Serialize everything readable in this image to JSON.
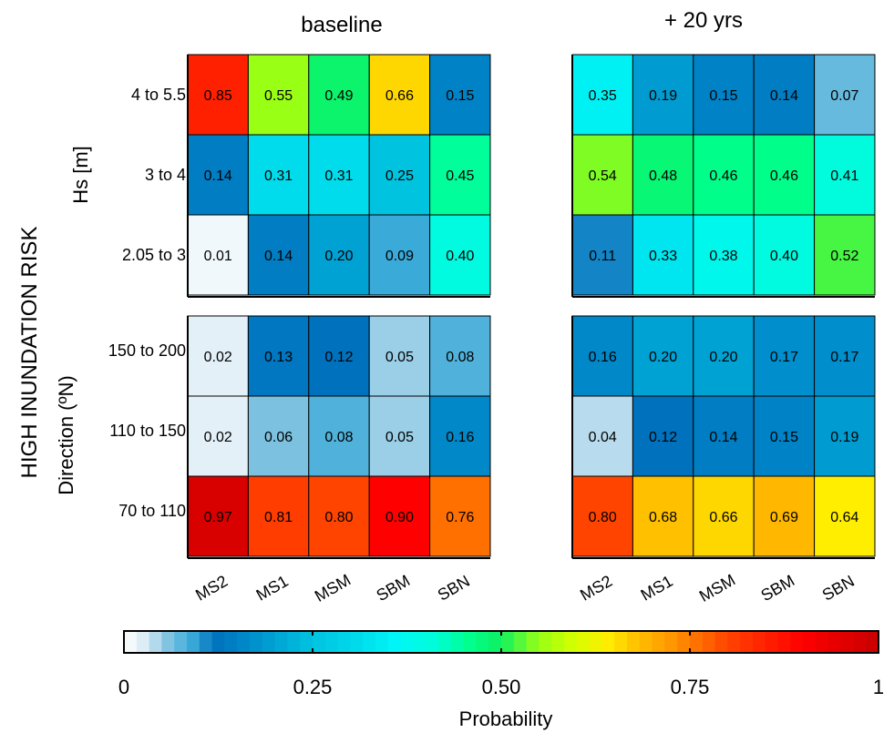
{
  "chart_data": {
    "type": "heatmap",
    "figure_label": "HIGH INUNDATION RISK",
    "columns": [
      "MS2",
      "MS1",
      "MSM",
      "SBM",
      "SBN"
    ],
    "panels": [
      {
        "title": "baseline",
        "row_group": "Hs [m]",
        "rows": [
          "4 to 5.5",
          "3 to 4",
          "2.05 to 3"
        ],
        "values": [
          [
            0.85,
            0.55,
            0.49,
            0.66,
            0.15
          ],
          [
            0.14,
            0.31,
            0.31,
            0.25,
            0.45
          ],
          [
            0.01,
            0.14,
            0.2,
            0.09,
            0.4
          ]
        ]
      },
      {
        "title": "+ 20 yrs",
        "row_group": "Hs [m]",
        "rows": [
          "4 to 5.5",
          "3 to 4",
          "2.05 to 3"
        ],
        "values": [
          [
            0.35,
            0.19,
            0.15,
            0.14,
            0.07
          ],
          [
            0.54,
            0.48,
            0.46,
            0.46,
            0.41
          ],
          [
            0.11,
            0.33,
            0.38,
            0.4,
            0.52
          ]
        ]
      },
      {
        "title": "baseline",
        "row_group": "Direction (ºN)",
        "rows": [
          "150 to 200",
          "110 to 150",
          "70 to 110"
        ],
        "values": [
          [
            0.02,
            0.13,
            0.12,
            0.05,
            0.08
          ],
          [
            0.02,
            0.06,
            0.08,
            0.05,
            0.16
          ],
          [
            0.97,
            0.81,
            0.8,
            0.9,
            0.76
          ]
        ]
      },
      {
        "title": "+ 20 yrs",
        "row_group": "Direction (ºN)",
        "rows": [
          "150 to 200",
          "110 to 150",
          "70 to 110"
        ],
        "values": [
          [
            0.16,
            0.2,
            0.2,
            0.17,
            0.17
          ],
          [
            0.04,
            0.12,
            0.14,
            0.15,
            0.19
          ],
          [
            0.8,
            0.68,
            0.66,
            0.69,
            0.64
          ]
        ]
      }
    ],
    "colorbar": {
      "label": "Probability",
      "range": [
        0,
        1
      ],
      "ticks": [
        "0",
        "0.25",
        "0.50",
        "0.75",
        "1"
      ],
      "tick_values": [
        0,
        0.25,
        0.5,
        0.75,
        1
      ],
      "colormap_stops": [
        [
          0.0,
          "#ffffff"
        ],
        [
          0.03,
          "#d6e9f4"
        ],
        [
          0.06,
          "#7cc2e0"
        ],
        [
          0.09,
          "#3aaad9"
        ],
        [
          0.12,
          "#0072bd"
        ],
        [
          0.15,
          "#0082c6"
        ],
        [
          0.2,
          "#00a2d4"
        ],
        [
          0.25,
          "#00c3e0"
        ],
        [
          0.31,
          "#00dcec"
        ],
        [
          0.36,
          "#00f6f6"
        ],
        [
          0.41,
          "#00fcdc"
        ],
        [
          0.46,
          "#00ff8a"
        ],
        [
          0.5,
          "#10f060"
        ],
        [
          0.55,
          "#99ff14"
        ],
        [
          0.6,
          "#d8ff00"
        ],
        [
          0.64,
          "#ffee00"
        ],
        [
          0.68,
          "#ffc000"
        ],
        [
          0.72,
          "#ff9c00"
        ],
        [
          0.76,
          "#ff7000"
        ],
        [
          0.8,
          "#ff4400"
        ],
        [
          0.85,
          "#ff2000"
        ],
        [
          0.9,
          "#ff0000"
        ],
        [
          1.0,
          "#c80000"
        ]
      ]
    }
  }
}
